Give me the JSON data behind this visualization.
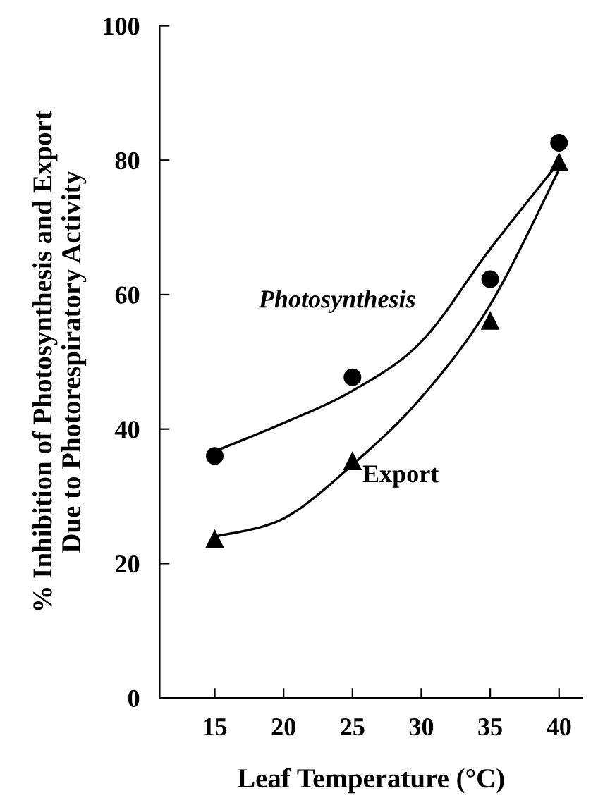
{
  "chart_data": {
    "type": "scatter",
    "xlabel": "Leaf Temperature (°C)",
    "ylabel": "% Inhibition of Photosynthesis and Export\nDue to Photorespiratory Activity",
    "x": [
      15,
      25,
      35,
      40
    ],
    "series": [
      {
        "name": "Photosynthesis",
        "color": "#000000",
        "marker": "circle",
        "values": [
          36,
          47.7,
          62.3,
          82.6
        ]
      },
      {
        "name": "Export",
        "color": "#000000",
        "marker": "triangle",
        "values": [
          23.6,
          35.2,
          56.1,
          79.7
        ]
      },
      {
        "type": "line",
        "color": "#000000",
        "x": [
          15,
          20,
          25,
          30,
          35,
          40
        ],
        "values": [
          36.7,
          40.9,
          45.7,
          53,
          66.8,
          79.7
        ]
      },
      {
        "type": "line",
        "color": "#000000",
        "x": [
          15,
          20,
          25,
          30,
          35,
          40
        ],
        "values": [
          24,
          26.7,
          34.7,
          44.7,
          58.5,
          78.6
        ]
      }
    ],
    "xlim": [
      11,
      41.7
    ],
    "ylim": [
      0,
      100
    ],
    "xticks": [
      15,
      20,
      25,
      30,
      35,
      40
    ],
    "yticks": [
      0,
      20,
      40,
      60,
      80,
      100
    ],
    "grid": false,
    "legend": false
  }
}
